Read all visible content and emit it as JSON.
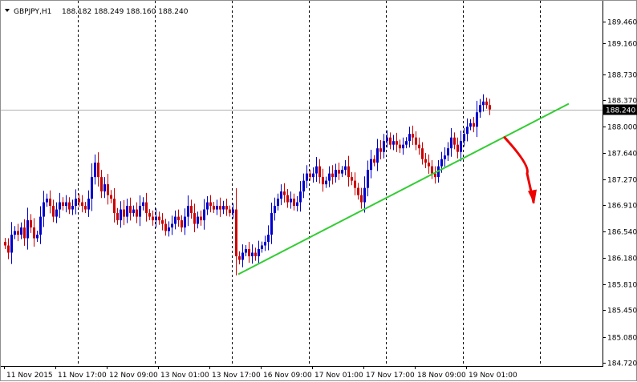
{
  "symbol_header": {
    "symbol": "GBPJPY,H1",
    "ohlc": "188.182 188.249 188.160 188.240",
    "dropdown_icon": "triangle-down-icon"
  },
  "current_price": 188.24,
  "current_price_label": "188.240",
  "colors": {
    "background": "#ffffff",
    "bull_candle": "#0000cc",
    "bear_candle": "#cc0000",
    "trendline": "#33cc33",
    "arrow": "#ee0000",
    "grid": "#000000",
    "price_line": "#b0b0b0",
    "price_tag_bg": "#000000",
    "price_tag_text": "#ffffff"
  },
  "chart_data": {
    "type": "candlestick",
    "grid": "vertical-dashed",
    "ylim": [
      184.72,
      189.64
    ],
    "y_ticks": [
      "189.460",
      "189.160",
      "188.730",
      "188.370",
      "188.000",
      "187.640",
      "187.270",
      "186.910",
      "186.540",
      "186.180",
      "185.810",
      "185.450",
      "185.080",
      "184.720"
    ],
    "y_tick_values": [
      189.46,
      189.16,
      188.73,
      188.37,
      188.0,
      187.64,
      187.27,
      186.91,
      186.54,
      186.18,
      185.81,
      185.45,
      185.08,
      184.72
    ],
    "x_labels": [
      "11 Nov 2015",
      "11 Nov 17:00",
      "12 Nov 09:00",
      "13 Nov 01:00",
      "13 Nov 17:00",
      "16 Nov 09:00",
      "17 Nov 01:00",
      "17 Nov 17:00",
      "18 Nov 09:00",
      "19 Nov 01:00"
    ],
    "x_label_bars": [
      0,
      16,
      32,
      48,
      64,
      80,
      96,
      112,
      128,
      144
    ],
    "gridline_bars": [
      23,
      47,
      71,
      95,
      119,
      143,
      167
    ],
    "total_bars": 190,
    "closes": [
      186.35,
      186.25,
      186.5,
      186.55,
      186.5,
      186.6,
      186.45,
      186.7,
      186.6,
      186.45,
      186.5,
      186.75,
      186.95,
      187.0,
      186.9,
      186.75,
      186.85,
      186.95,
      186.9,
      186.95,
      186.85,
      186.9,
      187.0,
      186.95,
      186.9,
      186.85,
      187.0,
      187.3,
      187.5,
      187.3,
      187.1,
      187.2,
      187.05,
      187.0,
      186.8,
      186.7,
      186.85,
      186.75,
      186.9,
      186.8,
      186.85,
      186.75,
      186.9,
      186.95,
      186.8,
      186.75,
      186.7,
      186.75,
      186.7,
      186.65,
      186.55,
      186.6,
      186.65,
      186.75,
      186.7,
      186.6,
      186.75,
      186.9,
      186.8,
      186.65,
      186.75,
      186.7,
      186.85,
      186.95,
      186.9,
      186.85,
      186.9,
      186.85,
      186.9,
      186.85,
      186.8,
      186.85,
      186.2,
      186.15,
      186.25,
      186.3,
      186.2,
      186.25,
      186.2,
      186.3,
      186.35,
      186.4,
      186.5,
      186.8,
      186.9,
      187.0,
      187.1,
      187.05,
      186.95,
      187.0,
      186.9,
      186.95,
      187.1,
      187.25,
      187.35,
      187.3,
      187.35,
      187.45,
      187.3,
      187.2,
      187.25,
      187.35,
      187.3,
      187.4,
      187.35,
      187.4,
      187.45,
      187.3,
      187.25,
      187.15,
      187.05,
      186.95,
      187.15,
      187.4,
      187.55,
      187.5,
      187.7,
      187.65,
      187.8,
      187.85,
      187.75,
      187.8,
      187.75,
      187.7,
      187.75,
      187.8,
      187.9,
      187.85,
      187.75,
      187.7,
      187.55,
      187.5,
      187.45,
      187.35,
      187.3,
      187.45,
      187.55,
      187.6,
      187.7,
      187.85,
      187.75,
      187.65,
      187.8,
      187.9,
      188.0,
      188.05,
      188.0,
      188.2,
      188.3,
      188.35,
      188.3,
      188.24
    ],
    "trendline_points": [
      [
        73,
        185.95
      ],
      [
        176,
        188.32
      ]
    ],
    "arrow_points": [
      [
        156,
        187.85
      ],
      [
        163,
        187.35
      ],
      [
        165,
        186.95
      ]
    ]
  }
}
